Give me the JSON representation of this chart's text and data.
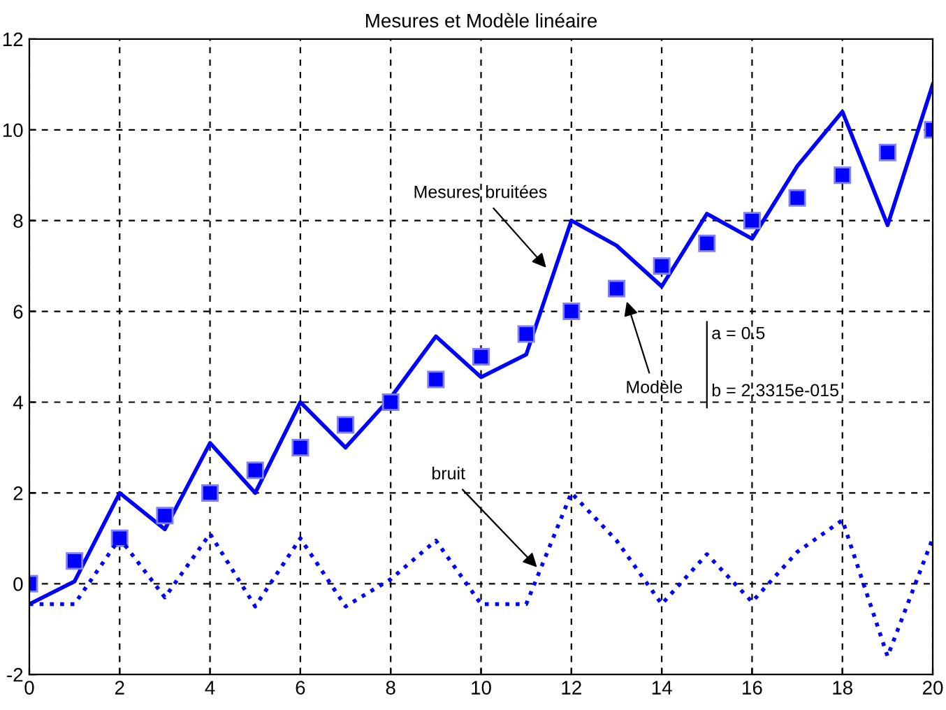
{
  "chart_data": {
    "type": "line",
    "title": "Mesures et Modèle linéaire",
    "x": [
      0,
      1,
      2,
      3,
      4,
      5,
      6,
      7,
      8,
      9,
      10,
      11,
      12,
      13,
      14,
      15,
      16,
      17,
      18,
      19,
      20
    ],
    "series": [
      {
        "color": "#0000ff",
        "line_style": "solid",
        "values": [
          -0.45,
          0.05,
          2.0,
          1.2,
          3.1,
          2.0,
          4.0,
          3.0,
          4.1,
          5.45,
          4.55,
          5.05,
          8.0,
          7.45,
          6.55,
          8.15,
          7.6,
          9.2,
          10.4,
          7.9,
          11.0
        ]
      },
      {
        "type": "scatter",
        "color": "#0000ff",
        "marker": "square",
        "values": [
          0,
          0.5,
          1,
          1.5,
          2,
          2.5,
          3,
          3.5,
          4,
          4.5,
          5,
          5.5,
          6,
          6.5,
          7,
          7.5,
          8,
          8.5,
          9,
          9.5,
          10
        ]
      },
      {
        "color": "#0000ff",
        "line_style": "dotted",
        "values": [
          -0.45,
          -0.45,
          1.0,
          -0.3,
          1.1,
          -0.5,
          1.0,
          -0.5,
          0.1,
          0.95,
          -0.45,
          -0.45,
          2.0,
          0.95,
          -0.45,
          0.65,
          -0.4,
          0.7,
          1.4,
          -1.6,
          1.0
        ]
      }
    ],
    "xlim": [
      0,
      20
    ],
    "xticks": [
      0,
      2,
      4,
      6,
      8,
      10,
      12,
      14,
      16,
      18,
      20
    ],
    "ylim": [
      -2,
      12
    ],
    "yticks": [
      -2,
      0,
      2,
      4,
      6,
      8,
      10,
      12
    ],
    "grid": true,
    "annotations": [
      {
        "text": "Mesures bruitées",
        "x": 11.5,
        "y": 6.9
      },
      {
        "text": "Modèle",
        "x": 13.2,
        "y": 6.3
      },
      {
        "text": "bruit",
        "x": 11.3,
        "y": 0.3
      },
      "a = 0.5",
      "b = 2.3315e-015"
    ]
  }
}
